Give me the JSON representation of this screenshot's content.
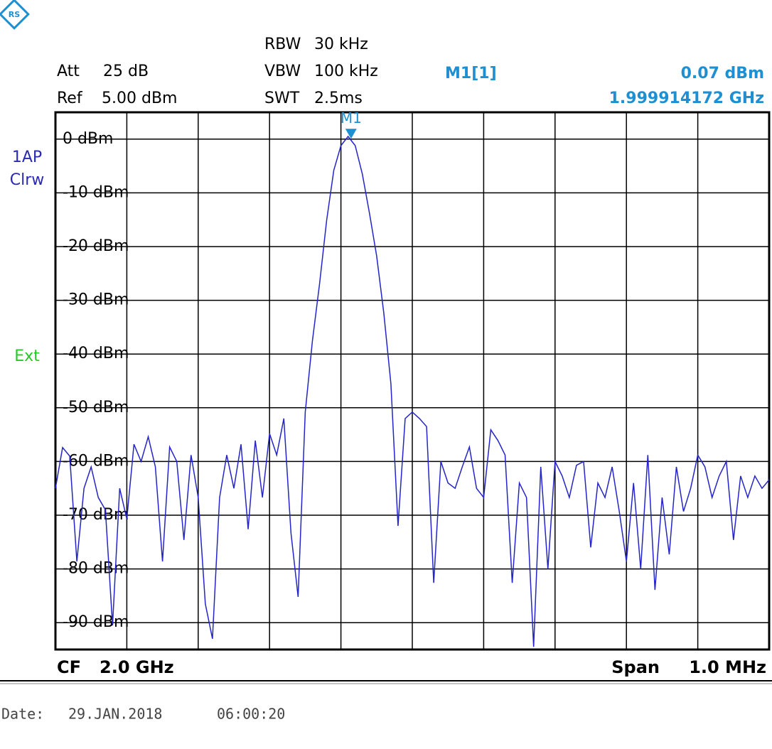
{
  "header": {
    "att": {
      "label": "Att",
      "value": "25 dB"
    },
    "ref": {
      "label": "Ref",
      "value": "5.00 dBm"
    },
    "rbw": {
      "label": "RBW",
      "value": "30 kHz"
    },
    "vbw": {
      "label": "VBW",
      "value": "100 kHz"
    },
    "swt": {
      "label": "SWT",
      "value": "2.5ms"
    },
    "trace_mode": [
      "1AP",
      "Clrw"
    ],
    "trigger": "Ext"
  },
  "footer": {
    "cf": {
      "label": "CF",
      "value": "2.0 GHz"
    },
    "span": {
      "label": "Span",
      "value": "1.0 MHz"
    },
    "date": {
      "label": "Date:",
      "day": "29.JAN.2018",
      "time": "06:00:20"
    }
  },
  "chart_data": {
    "type": "line",
    "x": [
      1.9995,
      1.99951,
      1.99952,
      1.99953,
      1.99954,
      1.99955,
      1.99956,
      1.99957,
      1.99958,
      1.99959,
      1.9996,
      1.99961,
      1.99962,
      1.99963,
      1.99964,
      1.99965,
      1.99966,
      1.99967,
      1.99968,
      1.99969,
      1.9997,
      1.99971,
      1.99972,
      1.99973,
      1.99974,
      1.99975,
      1.99976,
      1.99977,
      1.99978,
      1.99979,
      1.9998,
      1.99981,
      1.99982,
      1.99983,
      1.99984,
      1.99985,
      1.99986,
      1.99987,
      1.99988,
      1.99989,
      1.9999,
      1.99991,
      1.99992,
      1.99993,
      1.99994,
      1.99995,
      1.99996,
      1.99997,
      1.99998,
      1.99999,
      2.0,
      2.00001,
      2.00002,
      2.00003,
      2.00004,
      2.00005,
      2.00006,
      2.00007,
      2.00008,
      2.00009,
      2.0001,
      2.00011,
      2.00012,
      2.00013,
      2.00014,
      2.00015,
      2.00016,
      2.00017,
      2.00018,
      2.00019,
      2.0002,
      2.00021,
      2.00022,
      2.00023,
      2.00024,
      2.00025,
      2.00026,
      2.00027,
      2.00028,
      2.00029,
      2.0003,
      2.00031,
      2.00032,
      2.00033,
      2.00034,
      2.00035,
      2.00036,
      2.00037,
      2.00038,
      2.00039,
      2.0004,
      2.00041,
      2.00042,
      2.00043,
      2.00044,
      2.00045,
      2.00046,
      2.00047,
      2.00048,
      2.00049,
      2.0005
    ],
    "series": [
      {
        "color": "#2424c8",
        "values": [
          -65,
          -57.4,
          -59,
          -78.6,
          -65,
          -61,
          -66.7,
          -69,
          -90.5,
          -65,
          -70.7,
          -56.8,
          -60,
          -55.4,
          -61,
          -78.6,
          -57.3,
          -60,
          -74.6,
          -58.8,
          -66.7,
          -86.5,
          -93,
          -66.7,
          -58.8,
          -65,
          -56.8,
          -72.6,
          -56.1,
          -66.7,
          -54.8,
          -58.8,
          -52,
          -73.3,
          -85.2,
          -50.8,
          -37.6,
          -27,
          -15.1,
          -5.8,
          -1.2,
          0.5,
          -1.2,
          -6.5,
          -13.8,
          -21.7,
          -32.3,
          -45.5,
          -72,
          -52,
          -50.8,
          -52,
          -53.5,
          -82.6,
          -60,
          -64,
          -65,
          -61,
          -57.3,
          -65,
          -66.7,
          -54.1,
          -56.1,
          -58.8,
          -82.6,
          -64,
          -66.7,
          -94.5,
          -61,
          -80,
          -60,
          -62.7,
          -66.7,
          -60.7,
          -60,
          -76,
          -64,
          -66.7,
          -61,
          -69.3,
          -78.6,
          -64,
          -80,
          -58.8,
          -83.9,
          -66.7,
          -77.3,
          -61,
          -69.3,
          -65,
          -58.8,
          -61,
          -66.7,
          -62.7,
          -60,
          -74.6,
          -62.7,
          -66.7,
          -62.7,
          -65,
          -63.4
        ]
      }
    ],
    "xlim": [
      1.9995,
      2.0005
    ],
    "xticks": [
      1.9995,
      1.9996,
      1.9997,
      1.9998,
      1.9999,
      2.0,
      2.0001,
      2.0002,
      2.0003,
      2.0004,
      2.0005
    ],
    "ylim": [
      -95,
      5
    ],
    "yticks": [
      {
        "value": 0,
        "label": "0 dBm"
      },
      {
        "value": -10,
        "label": "-10 dBm"
      },
      {
        "value": -20,
        "label": "-20 dBm"
      },
      {
        "value": -30,
        "label": "-30 dBm"
      },
      {
        "value": -40,
        "label": "-40 dBm"
      },
      {
        "value": -50,
        "label": "-50 dBm"
      },
      {
        "value": -60,
        "label": "-60 dBm"
      },
      {
        "value": -70,
        "label": "-70 dBm"
      },
      {
        "value": -80,
        "label": "-80 dBm"
      },
      {
        "value": -90,
        "label": "-90 dBm"
      }
    ],
    "grid": true,
    "marker": {
      "label": "M1",
      "name": "M1[1]",
      "x": 1.999914172,
      "y": 0.07,
      "y_label": "0.07 dBm",
      "x_label": "1.999914172 GHz",
      "color": "#1e8fd0"
    }
  }
}
